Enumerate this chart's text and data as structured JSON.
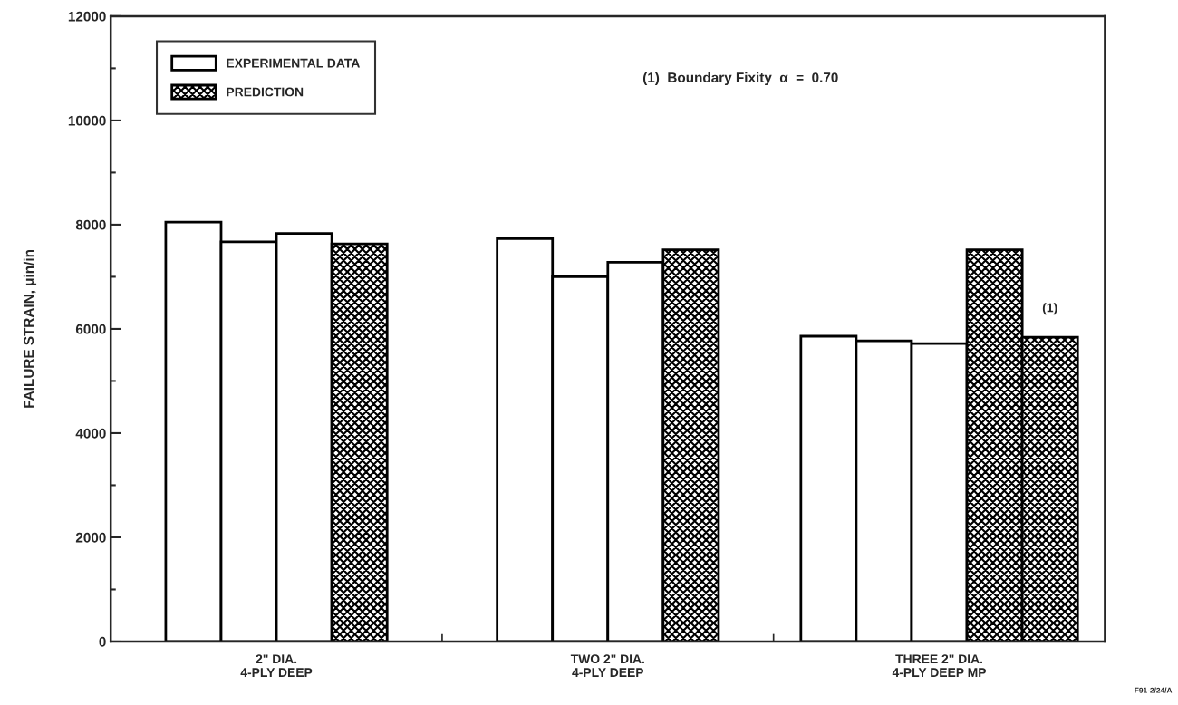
{
  "chart_data": {
    "type": "bar",
    "categories": [
      "2\" DIA.\n4-PLY DEEP",
      "TWO 2\" DIA.\n4-PLY DEEP",
      "THREE 2\" DIA.\n4-PLY DEEP MP"
    ],
    "series": [
      {
        "name": "EXPERIMENTAL DATA",
        "color": "#ffffff",
        "values": [
          8050,
          7730,
          5860
        ]
      },
      {
        "color": "#ffffff",
        "values": [
          7670,
          7000,
          5770
        ]
      },
      {
        "color": "#ffffff",
        "values": [
          7830,
          7280,
          5720
        ]
      },
      {
        "name": "PREDICTION",
        "color": "#000000",
        "values": [
          7630,
          7520,
          7520
        ]
      },
      {
        "color": "#000000",
        "values": [
          null,
          null,
          5840
        ]
      }
    ],
    "ylabel": "FAILURE STRAIN, μin/in",
    "ylim": [
      0,
      12000
    ],
    "yticks": [
      0,
      {
        "value": 1000,
        "label": null
      },
      2000,
      {
        "value": 3000,
        "label": null
      },
      4000,
      {
        "value": 5000,
        "label": null
      },
      6000,
      {
        "value": 7000,
        "label": null
      },
      8000,
      {
        "value": 9000,
        "label": null
      },
      10000,
      {
        "value": 11000,
        "label": null
      },
      12000
    ],
    "annotations": [
      "(1)",
      "(1)  Boundary Fixity  α  =  0.70",
      "F91-2/24/A"
    ],
    "legend": "top left",
    "grid": false
  }
}
